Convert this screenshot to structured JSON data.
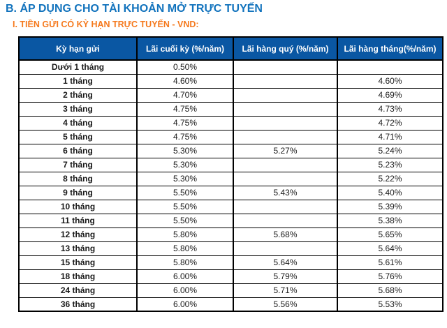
{
  "page": {
    "title": "B. ÁP DỤNG CHO TÀI KHOẢN MỞ TRỰC TUYẾN",
    "subtitle": "I. TIỀN GỬI CÓ KỲ HẠN TRỰC TUYẾN - VND:"
  },
  "colors": {
    "title_blue": "#1273BD",
    "subtitle_orange": "#F5791D",
    "header_bg": "#0A57A3",
    "header_text": "#FFFFFF",
    "border_color": "#000000"
  },
  "table": {
    "columns": [
      "Kỳ hạn gửi",
      "Lãi cuối kỳ (%/năm)",
      "Lãi hàng quý (%/năm)",
      "Lãi hàng tháng(%/năm)"
    ],
    "rows": [
      [
        "Dưới 1 tháng",
        "0.50%",
        "",
        ""
      ],
      [
        "1 tháng",
        "4.60%",
        "",
        "4.60%"
      ],
      [
        "2 tháng",
        "4.70%",
        "",
        "4.69%"
      ],
      [
        "3 tháng",
        "4.75%",
        "",
        "4.73%"
      ],
      [
        "4 tháng",
        "4.75%",
        "",
        "4.72%"
      ],
      [
        "5 tháng",
        "4.75%",
        "",
        "4.71%"
      ],
      [
        "6 tháng",
        "5.30%",
        "5.27%",
        "5.24%"
      ],
      [
        "7 tháng",
        "5.30%",
        "",
        "5.23%"
      ],
      [
        "8 tháng",
        "5.30%",
        "",
        "5.22%"
      ],
      [
        "9 tháng",
        "5.50%",
        "5.43%",
        "5.40%"
      ],
      [
        "10 tháng",
        "5.50%",
        "",
        "5.39%"
      ],
      [
        "11 tháng",
        "5.50%",
        "",
        "5.38%"
      ],
      [
        "12 tháng",
        "5.80%",
        "5.68%",
        "5.65%"
      ],
      [
        "13 tháng",
        "5.80%",
        "",
        "5.64%"
      ],
      [
        "15 tháng",
        "5.80%",
        "5.64%",
        "5.61%"
      ],
      [
        "18 tháng",
        "6.00%",
        "5.79%",
        "5.76%"
      ],
      [
        "24 tháng",
        "6.00%",
        "5.71%",
        "5.68%"
      ],
      [
        "36 tháng",
        "6.00%",
        "5.56%",
        "5.53%"
      ]
    ]
  }
}
